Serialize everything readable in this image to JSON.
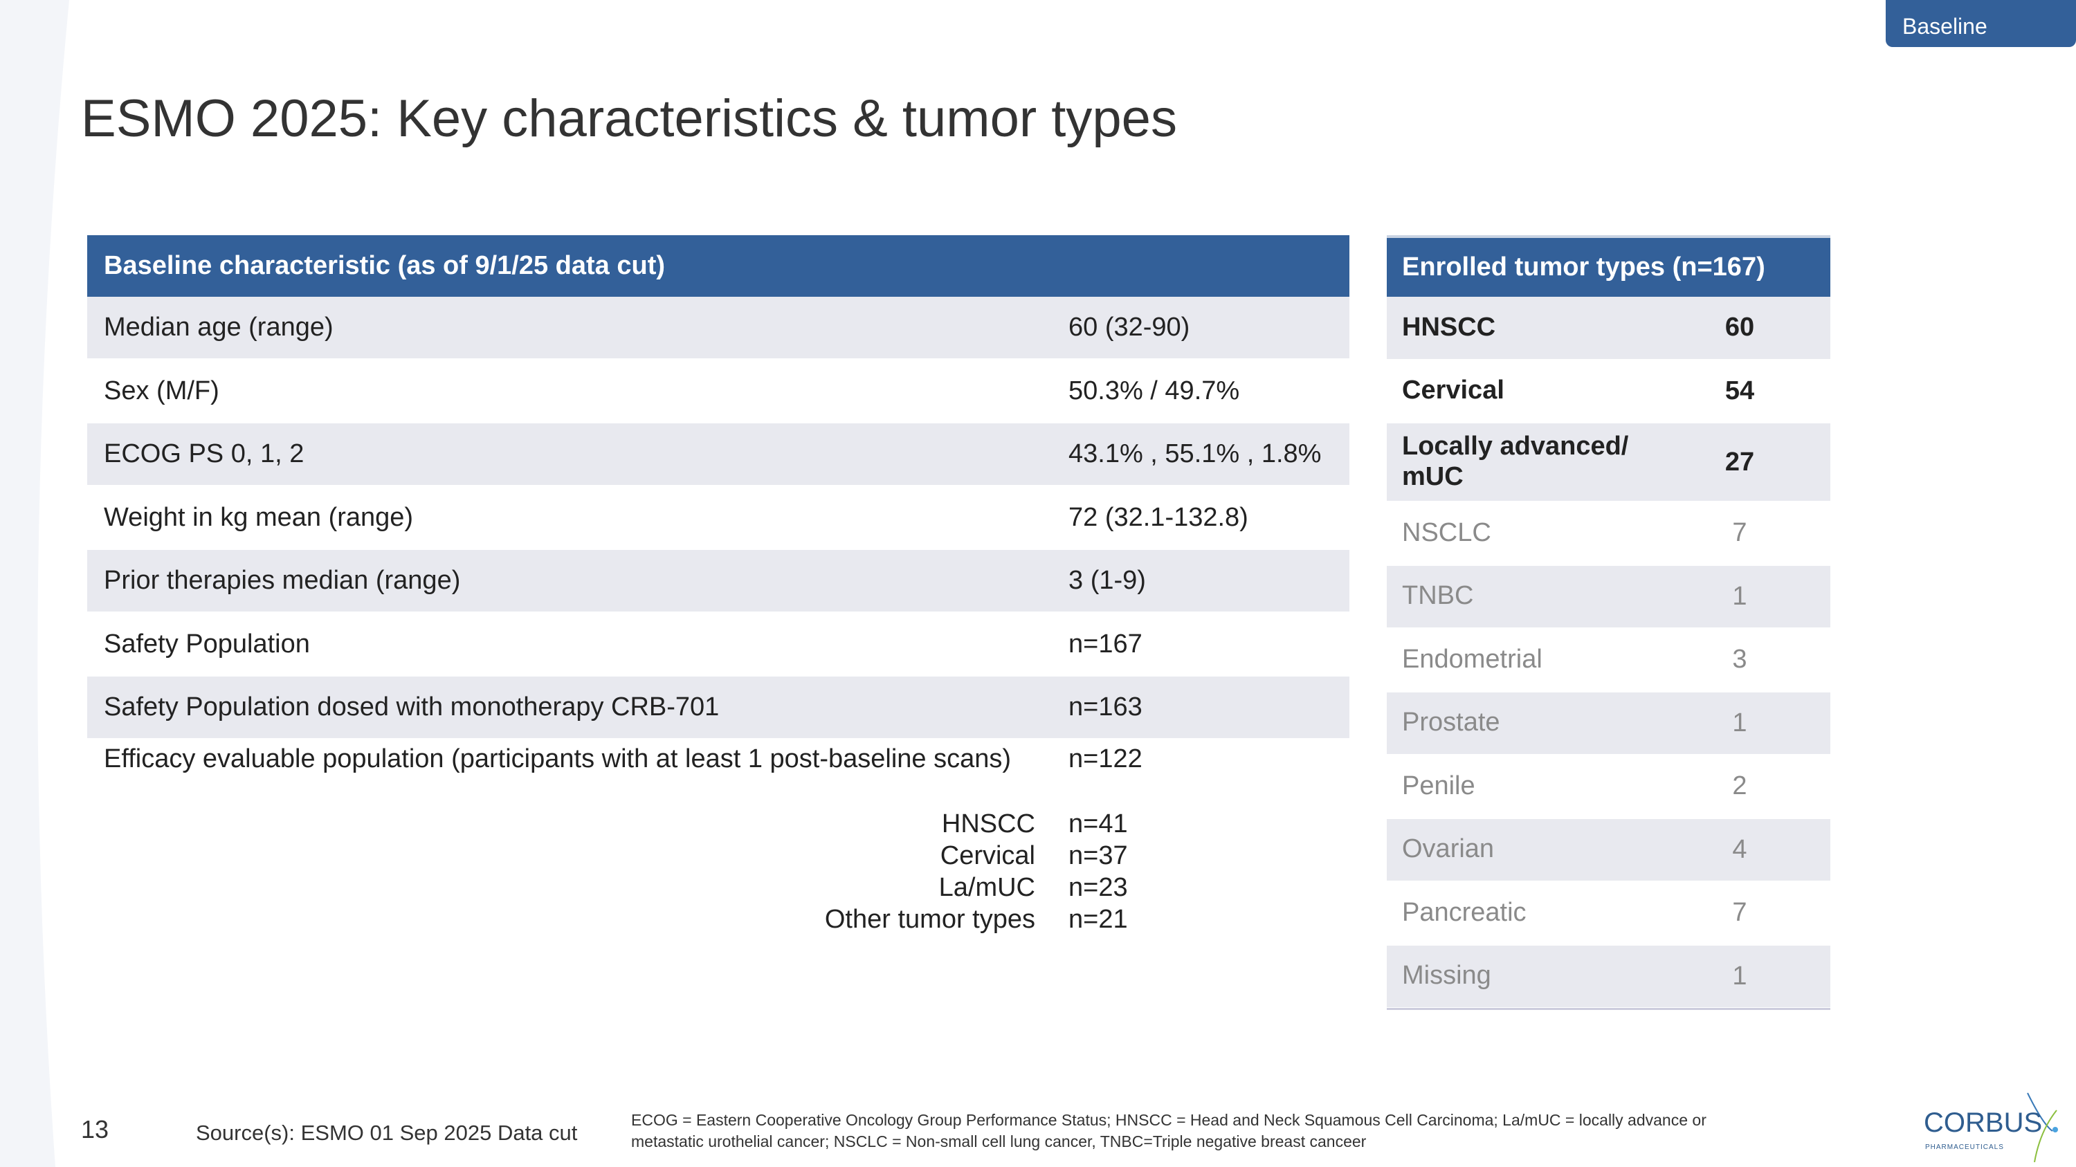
{
  "tag": "Baseline",
  "title": "ESMO 2025: Key characteristics & tumor types",
  "baseline": {
    "header": "Baseline characteristic (as of 9/1/25 data cut)",
    "rows": [
      {
        "label": "Median age (range)",
        "value": "60 (32-90)"
      },
      {
        "label": "Sex (M/F)",
        "value": "50.3% / 49.7%"
      },
      {
        "label": "ECOG PS  0, 1, 2",
        "value": "43.1% , 55.1% , 1.8%"
      },
      {
        "label": "Weight in kg mean (range)",
        "value": "72 (32.1-132.8)"
      },
      {
        "label": "Prior therapies median (range)",
        "value": "3 (1-9)"
      },
      {
        "label": "Safety Population",
        "value": "n=167"
      },
      {
        "label": "Safety Population dosed with monotherapy CRB-701",
        "value": "n=163"
      },
      {
        "label": "Efficacy evaluable population (participants with at least 1 post-baseline scans)",
        "value": "n=122"
      }
    ],
    "breakdown": [
      {
        "label": "HNSCC",
        "value": "n=41"
      },
      {
        "label": "Cervical",
        "value": "n=37"
      },
      {
        "label": "La/mUC",
        "value": "n=23"
      },
      {
        "label": "Other tumor types",
        "value": "n=21"
      }
    ]
  },
  "tumors": {
    "header": "Enrolled tumor types (n=167)",
    "rows": [
      {
        "label": "HNSCC",
        "value": "60"
      },
      {
        "label": "Cervical",
        "value": "54"
      },
      {
        "label": "Locally advanced/ mUC",
        "value": "27"
      },
      {
        "label": "NSCLC",
        "value": "7"
      },
      {
        "label": "TNBC",
        "value": "1"
      },
      {
        "label": "Endometrial",
        "value": "3"
      },
      {
        "label": "Prostate",
        "value": "1"
      },
      {
        "label": "Penile",
        "value": "2"
      },
      {
        "label": "Ovarian",
        "value": "4"
      },
      {
        "label": "Pancreatic",
        "value": "7"
      },
      {
        "label": "Missing",
        "value": "1"
      }
    ]
  },
  "footer": {
    "page": "13",
    "source": "Source(s): ESMO 01 Sep 2025 Data cut",
    "note1": "ECOG = Eastern Cooperative Oncology Group Performance Status; HNSCC = Head and Neck Squamous Cell Carcinoma; La/mUC = locally advance or",
    "note2": "metastatic urothelial cancer; NSCLC = Non-small cell lung cancer, TNBC=Triple negative breast canceer"
  },
  "logo": {
    "name": "CORBUS",
    "sub": "PHARMACEUTICALS"
  },
  "colors": {
    "accent": "#336099",
    "shade": "#e8e9ef"
  }
}
